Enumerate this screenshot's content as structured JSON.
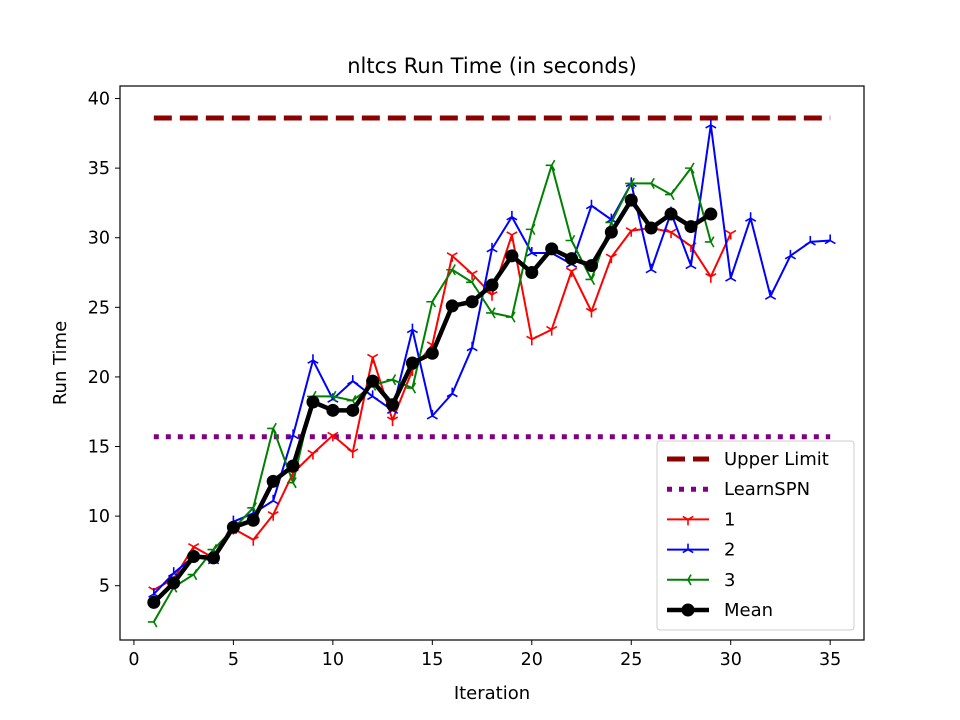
{
  "chart_data": {
    "type": "line",
    "title": "nltcs Run Time (in seconds)",
    "xlabel": "Iteration",
    "ylabel": "Run Time",
    "xlim": [
      -0.7,
      36.7
    ],
    "ylim": [
      1.1,
      40.9
    ],
    "xticks": [
      0,
      5,
      10,
      15,
      20,
      25,
      30,
      35
    ],
    "yticks": [
      5,
      10,
      15,
      20,
      25,
      30,
      35,
      40
    ],
    "grid": false,
    "legend_position": "lower-right",
    "series": [
      {
        "name": "Upper Limit",
        "color": "#8b0000",
        "style": "dashed",
        "marker": "none",
        "x": [
          1,
          35
        ],
        "y": [
          38.6,
          38.6
        ]
      },
      {
        "name": "LearnSPN",
        "color": "#800080",
        "style": "dotted",
        "marker": "none",
        "x": [
          1,
          35
        ],
        "y": [
          15.7,
          15.7
        ]
      },
      {
        "name": "1",
        "color": "#ff0000",
        "style": "solid",
        "marker": "tri_down",
        "x": [
          1,
          2,
          3,
          4,
          5,
          6,
          7,
          8,
          9,
          10,
          11,
          12,
          13,
          14,
          15,
          16,
          17,
          18,
          19,
          20,
          21,
          22,
          23,
          24,
          25,
          26,
          27,
          28,
          29,
          30
        ],
        "y": [
          4.7,
          5.5,
          7.8,
          7.0,
          9.1,
          8.3,
          10.1,
          13.1,
          14.5,
          15.8,
          14.6,
          21.4,
          16.9,
          20.5,
          22.3,
          28.7,
          27.4,
          25.9,
          30.2,
          22.7,
          23.4,
          27.6,
          24.7,
          28.6,
          30.5,
          30.7,
          30.4,
          29.4,
          27.2,
          30.3
        ]
      },
      {
        "name": "2",
        "color": "#0000ff",
        "style": "solid",
        "marker": "tri_up",
        "x": [
          1,
          2,
          3,
          4,
          5,
          6,
          7,
          8,
          9,
          10,
          11,
          12,
          13,
          14,
          15,
          16,
          17,
          18,
          19,
          20,
          21,
          22,
          23,
          24,
          25,
          26,
          27,
          28,
          29,
          30,
          31,
          32,
          33,
          34,
          35
        ],
        "y": [
          4.4,
          5.9,
          7.1,
          6.8,
          9.6,
          10.2,
          11.1,
          15.8,
          21.2,
          18.4,
          19.7,
          18.6,
          17.6,
          23.4,
          17.2,
          18.8,
          22.1,
          29.2,
          31.5,
          28.9,
          28.9,
          28.1,
          32.3,
          31.3,
          33.9,
          27.7,
          31.8,
          28.0,
          38.1,
          27.1,
          31.4,
          25.8,
          28.7,
          29.7,
          29.8
        ]
      },
      {
        "name": "3",
        "color": "#008000",
        "style": "solid",
        "marker": "tri_left",
        "x": [
          1,
          2,
          3,
          4,
          5,
          6,
          7,
          8,
          9,
          10,
          11,
          12,
          13,
          14,
          15,
          16,
          17,
          18,
          19,
          20,
          21,
          22,
          23,
          24,
          25,
          26,
          27,
          28,
          29
        ],
        "y": [
          2.4,
          4.9,
          5.8,
          7.6,
          9.1,
          10.6,
          16.3,
          12.4,
          18.6,
          18.6,
          18.3,
          19.4,
          19.8,
          19.2,
          25.4,
          27.7,
          26.8,
          24.6,
          24.3,
          30.6,
          35.2,
          29.8,
          27.0,
          31.1,
          33.9,
          33.9,
          33.1,
          35.0,
          29.7
        ]
      },
      {
        "name": "Mean",
        "color": "#000000",
        "style": "solid",
        "marker": "circle",
        "x": [
          1,
          2,
          3,
          4,
          5,
          6,
          7,
          8,
          9,
          10,
          11,
          12,
          13,
          14,
          15,
          16,
          17,
          18,
          19,
          20,
          21,
          22,
          23,
          24,
          25,
          26,
          27,
          28,
          29
        ],
        "y": [
          3.8,
          5.2,
          7.1,
          7.0,
          9.2,
          9.7,
          12.5,
          13.6,
          18.2,
          17.6,
          17.6,
          19.7,
          18.0,
          21.0,
          21.7,
          25.1,
          25.4,
          26.6,
          28.7,
          27.5,
          29.2,
          28.5,
          28.0,
          30.4,
          32.7,
          30.7,
          31.7,
          30.8,
          31.7
        ]
      }
    ]
  }
}
